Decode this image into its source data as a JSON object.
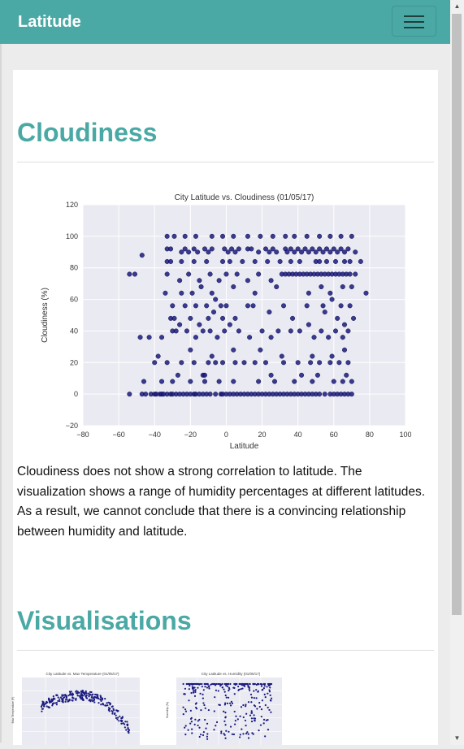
{
  "navbar": {
    "brand": "Latitude",
    "toggle_icon": "hamburger-menu-icon"
  },
  "main_section": {
    "heading": "Cloudiness",
    "description": "Cloudiness does not show a strong correlation to latitude. The visualization shows a range of humidity percentages at different latitudes. As a result, we cannot conclude that there is a convincing relationship between humidity and latitude."
  },
  "visualisations": {
    "heading": "Visualisations",
    "thumbnails": [
      {
        "title": "City Latitude vs. Max Temperature (01/05/17)",
        "ylabel": "Max Temperature (F)"
      },
      {
        "title": "City Latitude vs. Humidity (01/05/17)",
        "ylabel": "Humidity (%)"
      }
    ]
  },
  "colors": {
    "brand": "#4aa9a4",
    "plot_background": "#eaeaf2",
    "point": "#1a1a80"
  },
  "chart_data": {
    "type": "scatter",
    "title": "City Latitude vs. Cloudiness (01/05/17)",
    "xlabel": "Latitude",
    "ylabel": "Cloudiness (%)",
    "xlim": [
      -80,
      100
    ],
    "ylim": [
      -20,
      120
    ],
    "xticks": [
      -80,
      -60,
      -40,
      -20,
      0,
      20,
      40,
      60,
      80,
      100
    ],
    "yticks": [
      -20,
      0,
      20,
      40,
      60,
      80,
      100,
      120
    ],
    "grid": true,
    "points": [
      [
        -54,
        0
      ],
      [
        -47,
        0
      ],
      [
        -46,
        8
      ],
      [
        -45,
        0
      ],
      [
        -42,
        0
      ],
      [
        -40,
        0
      ],
      [
        -39,
        0
      ],
      [
        -37,
        0
      ],
      [
        -36,
        0
      ],
      [
        -35,
        0
      ],
      [
        -33,
        0
      ],
      [
        -31,
        0
      ],
      [
        -30,
        0
      ],
      [
        -28,
        0
      ],
      [
        -26,
        0
      ],
      [
        -24,
        0
      ],
      [
        -22,
        0
      ],
      [
        -20,
        0
      ],
      [
        -18,
        0
      ],
      [
        -17,
        0
      ],
      [
        -15,
        0
      ],
      [
        -13,
        0
      ],
      [
        -11,
        0
      ],
      [
        -9,
        0
      ],
      [
        -6,
        0
      ],
      [
        -3,
        0
      ],
      [
        -2,
        0
      ],
      [
        0,
        0
      ],
      [
        2,
        0
      ],
      [
        4,
        0
      ],
      [
        6,
        0
      ],
      [
        8,
        0
      ],
      [
        10,
        0
      ],
      [
        12,
        0
      ],
      [
        14,
        0
      ],
      [
        16,
        0
      ],
      [
        18,
        0
      ],
      [
        20,
        0
      ],
      [
        22,
        0
      ],
      [
        24,
        0
      ],
      [
        26,
        0
      ],
      [
        28,
        0
      ],
      [
        30,
        0
      ],
      [
        32,
        0
      ],
      [
        34,
        0
      ],
      [
        36,
        0
      ],
      [
        38,
        0
      ],
      [
        40,
        0
      ],
      [
        42,
        0
      ],
      [
        44,
        0
      ],
      [
        46,
        0
      ],
      [
        48,
        0
      ],
      [
        50,
        0
      ],
      [
        52,
        0
      ],
      [
        55,
        0
      ],
      [
        58,
        0
      ],
      [
        60,
        0
      ],
      [
        62,
        0
      ],
      [
        64,
        0
      ],
      [
        66,
        0
      ],
      [
        68,
        0
      ],
      [
        70,
        0
      ],
      [
        -36,
        8
      ],
      [
        -30,
        8
      ],
      [
        -20,
        8
      ],
      [
        -12,
        8
      ],
      [
        -4,
        8
      ],
      [
        4,
        8
      ],
      [
        18,
        8
      ],
      [
        27,
        8
      ],
      [
        38,
        8
      ],
      [
        48,
        8
      ],
      [
        60,
        8
      ],
      [
        65,
        8
      ],
      [
        70,
        8
      ],
      [
        -40,
        20
      ],
      [
        -33,
        20
      ],
      [
        -25,
        20
      ],
      [
        -18,
        20
      ],
      [
        -10,
        20
      ],
      [
        -6,
        20
      ],
      [
        -2,
        20
      ],
      [
        5,
        20
      ],
      [
        10,
        20
      ],
      [
        16,
        20
      ],
      [
        22,
        20
      ],
      [
        32,
        20
      ],
      [
        40,
        20
      ],
      [
        47,
        20
      ],
      [
        52,
        20
      ],
      [
        58,
        20
      ],
      [
        63,
        20
      ],
      [
        68,
        20
      ],
      [
        -27,
        12
      ],
      [
        -13,
        12
      ],
      [
        -12,
        12
      ],
      [
        25,
        12
      ],
      [
        42,
        12
      ],
      [
        51,
        12
      ],
      [
        67,
        12
      ],
      [
        -38,
        24
      ],
      [
        -20,
        28
      ],
      [
        -8,
        24
      ],
      [
        4,
        28
      ],
      [
        19,
        28
      ],
      [
        31,
        24
      ],
      [
        48,
        24
      ],
      [
        59,
        24
      ],
      [
        66,
        28
      ],
      [
        -48,
        36
      ],
      [
        -43,
        36
      ],
      [
        -36,
        36
      ],
      [
        -30,
        40
      ],
      [
        -28,
        40
      ],
      [
        -22,
        40
      ],
      [
        -17,
        36
      ],
      [
        -13,
        40
      ],
      [
        -9,
        40
      ],
      [
        -5,
        36
      ],
      [
        -1,
        40
      ],
      [
        2,
        44
      ],
      [
        7,
        40
      ],
      [
        13,
        36
      ],
      [
        20,
        40
      ],
      [
        25,
        36
      ],
      [
        29,
        40
      ],
      [
        36,
        40
      ],
      [
        41,
        40
      ],
      [
        49,
        36
      ],
      [
        53,
        40
      ],
      [
        57,
        36
      ],
      [
        61,
        40
      ],
      [
        65,
        36
      ],
      [
        68,
        40
      ],
      [
        -31,
        48
      ],
      [
        -29,
        48
      ],
      [
        -26,
        44
      ],
      [
        -20,
        48
      ],
      [
        -15,
        44
      ],
      [
        -10,
        48
      ],
      [
        -7,
        52
      ],
      [
        -2,
        48
      ],
      [
        0,
        56
      ],
      [
        5,
        48
      ],
      [
        15,
        56
      ],
      [
        24,
        52
      ],
      [
        37,
        48
      ],
      [
        46,
        44
      ],
      [
        55,
        52
      ],
      [
        62,
        48
      ],
      [
        66,
        44
      ],
      [
        71,
        48
      ],
      [
        -30,
        56
      ],
      [
        -23,
        56
      ],
      [
        -17,
        56
      ],
      [
        -11,
        56
      ],
      [
        -6,
        60
      ],
      [
        -3,
        56
      ],
      [
        12,
        56
      ],
      [
        32,
        56
      ],
      [
        45,
        56
      ],
      [
        54,
        56
      ],
      [
        59,
        60
      ],
      [
        64,
        56
      ],
      [
        69,
        56
      ],
      [
        -34,
        64
      ],
      [
        -25,
        64
      ],
      [
        -19,
        64
      ],
      [
        -14,
        68
      ],
      [
        -8,
        64
      ],
      [
        4,
        68
      ],
      [
        16,
        64
      ],
      [
        28,
        68
      ],
      [
        46,
        64
      ],
      [
        53,
        68
      ],
      [
        58,
        64
      ],
      [
        65,
        68
      ],
      [
        70,
        68
      ],
      [
        78,
        64
      ],
      [
        -54,
        76
      ],
      [
        -51,
        76
      ],
      [
        -33,
        76
      ],
      [
        -26,
        72
      ],
      [
        -21,
        76
      ],
      [
        -15,
        72
      ],
      [
        -9,
        76
      ],
      [
        -4,
        72
      ],
      [
        0,
        76
      ],
      [
        6,
        76
      ],
      [
        12,
        72
      ],
      [
        18,
        76
      ],
      [
        25,
        72
      ],
      [
        31,
        76
      ],
      [
        33,
        76
      ],
      [
        35,
        76
      ],
      [
        37,
        76
      ],
      [
        39,
        76
      ],
      [
        41,
        76
      ],
      [
        43,
        76
      ],
      [
        45,
        76
      ],
      [
        47,
        76
      ],
      [
        49,
        76
      ],
      [
        51,
        76
      ],
      [
        53,
        76
      ],
      [
        55,
        76
      ],
      [
        57,
        76
      ],
      [
        59,
        76
      ],
      [
        61,
        76
      ],
      [
        63,
        76
      ],
      [
        65,
        76
      ],
      [
        67,
        76
      ],
      [
        69,
        76
      ],
      [
        72,
        76
      ],
      [
        -33,
        84
      ],
      [
        -31,
        84
      ],
      [
        -25,
        84
      ],
      [
        -18,
        84
      ],
      [
        -11,
        84
      ],
      [
        -2,
        84
      ],
      [
        2,
        84
      ],
      [
        9,
        84
      ],
      [
        16,
        84
      ],
      [
        23,
        84
      ],
      [
        30,
        84
      ],
      [
        36,
        84
      ],
      [
        41,
        84
      ],
      [
        50,
        84
      ],
      [
        52,
        84
      ],
      [
        56,
        84
      ],
      [
        61,
        84
      ],
      [
        66,
        84
      ],
      [
        69,
        84
      ],
      [
        75,
        84
      ],
      [
        -47,
        88
      ],
      [
        -33,
        92
      ],
      [
        -31,
        92
      ],
      [
        -25,
        90
      ],
      [
        -23,
        92
      ],
      [
        -21,
        90
      ],
      [
        -18,
        92
      ],
      [
        -16,
        90
      ],
      [
        -12,
        92
      ],
      [
        -10,
        90
      ],
      [
        -8,
        92
      ],
      [
        -1,
        92
      ],
      [
        1,
        90
      ],
      [
        3,
        92
      ],
      [
        5,
        90
      ],
      [
        7,
        92
      ],
      [
        12,
        92
      ],
      [
        14,
        92
      ],
      [
        18,
        90
      ],
      [
        22,
        92
      ],
      [
        24,
        90
      ],
      [
        26,
        92
      ],
      [
        28,
        90
      ],
      [
        33,
        92
      ],
      [
        34,
        90
      ],
      [
        36,
        92
      ],
      [
        38,
        90
      ],
      [
        40,
        92
      ],
      [
        42,
        90
      ],
      [
        44,
        92
      ],
      [
        46,
        90
      ],
      [
        48,
        92
      ],
      [
        50,
        90
      ],
      [
        52,
        92
      ],
      [
        54,
        90
      ],
      [
        56,
        92
      ],
      [
        58,
        90
      ],
      [
        60,
        92
      ],
      [
        62,
        90
      ],
      [
        64,
        92
      ],
      [
        66,
        90
      ],
      [
        68,
        92
      ],
      [
        72,
        90
      ],
      [
        -33,
        100
      ],
      [
        -29,
        100
      ],
      [
        -23,
        100
      ],
      [
        -17,
        100
      ],
      [
        -8,
        100
      ],
      [
        -2,
        100
      ],
      [
        4,
        100
      ],
      [
        12,
        100
      ],
      [
        19,
        100
      ],
      [
        26,
        100
      ],
      [
        33,
        100
      ],
      [
        38,
        100
      ],
      [
        45,
        100
      ],
      [
        52,
        100
      ],
      [
        58,
        100
      ],
      [
        64,
        100
      ],
      [
        70,
        100
      ]
    ]
  }
}
